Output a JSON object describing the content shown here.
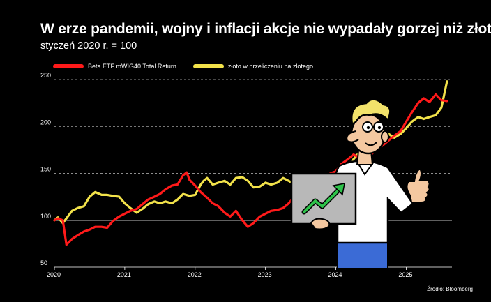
{
  "title": "W erze pandemii, wojny i inflacji akcje nie wypadały gorzej niż złoto",
  "subtitle": "styczeń 2020 r. = 100",
  "source": "Źródło:  Bloomberg",
  "colors": {
    "red": "#ff1a1a",
    "yellow": "#f2e24a",
    "grid": "#ffffff"
  },
  "chart_data": {
    "type": "line",
    "x_ticks": [
      "2020",
      "2021",
      "2022",
      "2023",
      "2024",
      "2025"
    ],
    "ylim": [
      50,
      250
    ],
    "y_ticks": [
      50,
      100,
      150,
      200,
      250
    ],
    "grid": "horizontal dashed",
    "legend": "top-left",
    "series": [
      {
        "name": "Beta ETF mWIG40 Total Return",
        "color": "#ff1a1a",
        "points": [
          [
            2020.0,
            100
          ],
          [
            2020.05,
            102
          ],
          [
            2020.12,
            100
          ],
          [
            2020.17,
            74
          ],
          [
            2020.25,
            80
          ],
          [
            2020.33,
            84
          ],
          [
            2020.42,
            88
          ],
          [
            2020.5,
            90
          ],
          [
            2020.58,
            93
          ],
          [
            2020.67,
            93
          ],
          [
            2020.75,
            92
          ],
          [
            2020.83,
            99
          ],
          [
            2020.92,
            104
          ],
          [
            2021.0,
            107
          ],
          [
            2021.08,
            110
          ],
          [
            2021.17,
            112
          ],
          [
            2021.25,
            117
          ],
          [
            2021.33,
            122
          ],
          [
            2021.42,
            125
          ],
          [
            2021.5,
            128
          ],
          [
            2021.58,
            133
          ],
          [
            2021.67,
            137
          ],
          [
            2021.75,
            138
          ],
          [
            2021.83,
            148
          ],
          [
            2021.88,
            151
          ],
          [
            2021.92,
            143
          ],
          [
            2022.0,
            137
          ],
          [
            2022.08,
            130
          ],
          [
            2022.17,
            124
          ],
          [
            2022.25,
            118
          ],
          [
            2022.33,
            115
          ],
          [
            2022.42,
            108
          ],
          [
            2022.5,
            104
          ],
          [
            2022.58,
            110
          ],
          [
            2022.67,
            100
          ],
          [
            2022.75,
            93
          ],
          [
            2022.83,
            97
          ],
          [
            2022.92,
            104
          ],
          [
            2023.0,
            107
          ],
          [
            2023.08,
            110
          ],
          [
            2023.17,
            111
          ],
          [
            2023.25,
            113
          ],
          [
            2023.33,
            118
          ],
          [
            2023.42,
            126
          ],
          [
            2023.5,
            122
          ],
          [
            2023.58,
            128
          ],
          [
            2023.67,
            132
          ],
          [
            2023.75,
            140
          ],
          [
            2023.83,
            142
          ],
          [
            2023.92,
            150
          ],
          [
            2024.0,
            152
          ],
          [
            2024.08,
            160
          ],
          [
            2024.17,
            165
          ],
          [
            2024.25,
            170
          ],
          [
            2024.33,
            167
          ],
          [
            2024.42,
            162
          ],
          [
            2024.5,
            170
          ],
          [
            2024.58,
            176
          ],
          [
            2024.67,
            180
          ],
          [
            2024.75,
            185
          ],
          [
            2024.83,
            190
          ],
          [
            2024.92,
            195
          ],
          [
            2025.0,
            205
          ],
          [
            2025.08,
            215
          ],
          [
            2025.17,
            225
          ],
          [
            2025.25,
            230
          ],
          [
            2025.33,
            226
          ],
          [
            2025.42,
            234
          ],
          [
            2025.5,
            228
          ],
          [
            2025.58,
            227
          ]
        ]
      },
      {
        "name": "złoto w przeliczeniu na złotego",
        "color": "#f2e24a",
        "points": [
          [
            2020.0,
            100
          ],
          [
            2020.05,
            103
          ],
          [
            2020.12,
            97
          ],
          [
            2020.17,
            102
          ],
          [
            2020.25,
            110
          ],
          [
            2020.33,
            113
          ],
          [
            2020.42,
            115
          ],
          [
            2020.5,
            125
          ],
          [
            2020.58,
            130
          ],
          [
            2020.67,
            127
          ],
          [
            2020.75,
            127
          ],
          [
            2020.83,
            126
          ],
          [
            2020.92,
            125
          ],
          [
            2021.0,
            118
          ],
          [
            2021.08,
            113
          ],
          [
            2021.17,
            108
          ],
          [
            2021.25,
            112
          ],
          [
            2021.33,
            117
          ],
          [
            2021.42,
            120
          ],
          [
            2021.5,
            118
          ],
          [
            2021.58,
            120
          ],
          [
            2021.67,
            118
          ],
          [
            2021.75,
            122
          ],
          [
            2021.83,
            128
          ],
          [
            2021.92,
            126
          ],
          [
            2022.0,
            127
          ],
          [
            2022.08,
            138
          ],
          [
            2022.12,
            142
          ],
          [
            2022.17,
            145
          ],
          [
            2022.25,
            138
          ],
          [
            2022.33,
            140
          ],
          [
            2022.42,
            142
          ],
          [
            2022.5,
            138
          ],
          [
            2022.58,
            145
          ],
          [
            2022.67,
            146
          ],
          [
            2022.75,
            142
          ],
          [
            2022.83,
            135
          ],
          [
            2022.92,
            136
          ],
          [
            2023.0,
            140
          ],
          [
            2023.08,
            138
          ],
          [
            2023.17,
            140
          ],
          [
            2023.25,
            145
          ],
          [
            2023.33,
            142
          ],
          [
            2023.42,
            138
          ],
          [
            2023.5,
            135
          ],
          [
            2023.58,
            137
          ],
          [
            2023.67,
            140
          ],
          [
            2023.75,
            144
          ],
          [
            2023.83,
            143
          ],
          [
            2023.92,
            146
          ],
          [
            2024.0,
            146
          ],
          [
            2024.08,
            149
          ],
          [
            2024.17,
            155
          ],
          [
            2024.25,
            165
          ],
          [
            2024.33,
            172
          ],
          [
            2024.42,
            173
          ],
          [
            2024.5,
            178
          ],
          [
            2024.58,
            180
          ],
          [
            2024.67,
            183
          ],
          [
            2024.75,
            192
          ],
          [
            2024.83,
            188
          ],
          [
            2024.92,
            192
          ],
          [
            2025.0,
            198
          ],
          [
            2025.08,
            205
          ],
          [
            2025.17,
            210
          ],
          [
            2025.25,
            208
          ],
          [
            2025.33,
            210
          ],
          [
            2025.42,
            212
          ],
          [
            2025.5,
            220
          ],
          [
            2025.58,
            248
          ]
        ]
      }
    ]
  },
  "illustration": {
    "description_icon": "man-with-laptop-thumbs-up",
    "laptop_icon": "rising-arrow-icon"
  }
}
